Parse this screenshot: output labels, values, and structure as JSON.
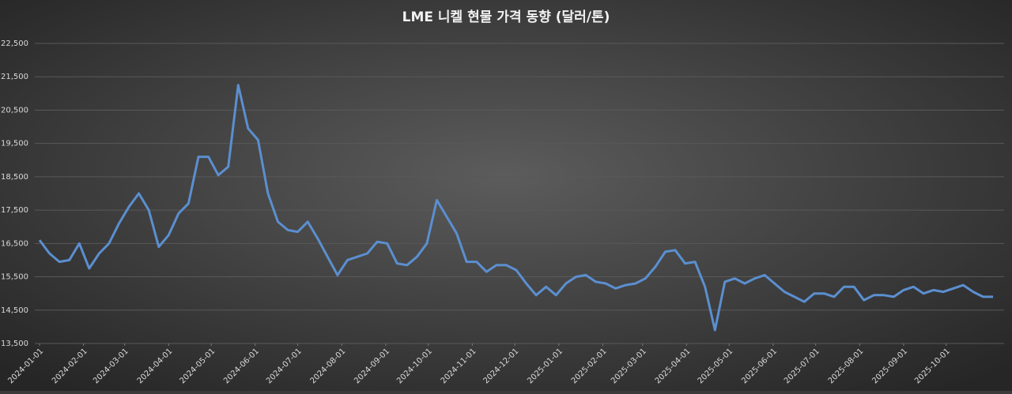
{
  "chart_data": {
    "type": "line",
    "title": "LME 니켈 현물 가격 동향 (달러/톤)",
    "x": [
      "2024-01-01",
      "2024-01-08",
      "2024-01-15",
      "2024-01-22",
      "2024-01-29",
      "2024-02-05",
      "2024-02-12",
      "2024-02-19",
      "2024-02-26",
      "2024-03-04",
      "2024-03-11",
      "2024-03-18",
      "2024-03-25",
      "2024-04-01",
      "2024-04-08",
      "2024-04-15",
      "2024-04-22",
      "2024-04-29",
      "2024-05-06",
      "2024-05-13",
      "2024-05-20",
      "2024-05-27",
      "2024-06-03",
      "2024-06-10",
      "2024-06-17",
      "2024-06-24",
      "2024-07-01",
      "2024-07-08",
      "2024-07-15",
      "2024-07-22",
      "2024-07-29",
      "2024-08-05",
      "2024-08-12",
      "2024-08-19",
      "2024-08-26",
      "2024-09-02",
      "2024-09-09",
      "2024-09-16",
      "2024-09-23",
      "2024-09-30",
      "2024-10-07",
      "2024-10-14",
      "2024-10-21",
      "2024-10-28",
      "2024-11-04",
      "2024-11-11",
      "2024-11-18",
      "2024-11-25",
      "2024-12-02",
      "2024-12-09",
      "2024-12-16",
      "2024-12-23",
      "2024-12-30",
      "2025-01-06",
      "2025-01-13",
      "2025-01-20",
      "2025-01-27",
      "2025-02-03",
      "2025-02-10",
      "2025-02-17",
      "2025-02-24",
      "2025-03-03",
      "2025-03-10",
      "2025-03-17",
      "2025-03-24",
      "2025-03-31",
      "2025-04-07",
      "2025-04-14",
      "2025-04-21",
      "2025-04-28",
      "2025-05-05",
      "2025-05-12",
      "2025-05-19",
      "2025-05-26",
      "2025-06-02",
      "2025-06-09",
      "2025-06-16",
      "2025-06-23",
      "2025-06-30",
      "2025-07-07",
      "2025-07-14",
      "2025-07-21",
      "2025-07-28",
      "2025-08-04",
      "2025-08-11",
      "2025-08-18",
      "2025-08-25",
      "2025-09-01",
      "2025-09-08",
      "2025-09-15",
      "2025-09-22",
      "2025-09-29",
      "2025-10-06",
      "2025-10-13",
      "2025-10-20",
      "2025-10-27",
      "2025-11-03"
    ],
    "values": [
      16600,
      16200,
      15950,
      16000,
      16500,
      15750,
      16200,
      16500,
      17100,
      17600,
      18000,
      17500,
      16400,
      16750,
      17400,
      17700,
      19100,
      19100,
      18550,
      18800,
      21250,
      19950,
      19600,
      18000,
      17150,
      16900,
      16850,
      17150,
      16650,
      16100,
      15550,
      16000,
      16100,
      16200,
      16550,
      16500,
      15900,
      15850,
      16100,
      16500,
      17800,
      17300,
      16800,
      15950,
      15950,
      15650,
      15850,
      15850,
      15700,
      15300,
      14950,
      15200,
      14950,
      15300,
      15500,
      15550,
      15350,
      15300,
      15150,
      15250,
      15300,
      15450,
      15800,
      16250,
      16300,
      15900,
      15950,
      15200,
      13900,
      15350,
      15450,
      15300,
      15450,
      15550,
      15300,
      15050,
      14900,
      14750,
      15000,
      15000,
      14900,
      15200,
      15200,
      14800,
      14950,
      14950,
      14900,
      15100,
      15200,
      15000,
      15100,
      15050,
      15150,
      15250,
      15050,
      14900,
      14900
    ],
    "color": "#5b8fd0",
    "xlim": [
      "2024-01-01",
      "2025-11-03"
    ],
    "xticks": [
      "2024-01-01",
      "2024-02-01",
      "2024-03-01",
      "2024-04-01",
      "2024-05-01",
      "2024-06-01",
      "2024-07-01",
      "2024-08-01",
      "2024-09-01",
      "2024-10-01",
      "2024-11-01",
      "2024-12-01",
      "2025-01-01",
      "2025-02-01",
      "2025-03-01",
      "2025-04-01",
      "2025-05-01",
      "2025-06-01",
      "2025-07-01",
      "2025-08-01",
      "2025-09-01",
      "2025-10-01"
    ],
    "ylim": [
      13500,
      22500
    ],
    "yticks": [
      {
        "value": 13500,
        "label": "13,500"
      },
      {
        "value": 14500,
        "label": "14,500"
      },
      {
        "value": 15500,
        "label": "15,500"
      },
      {
        "value": 16500,
        "label": "16,500"
      },
      {
        "value": 17500,
        "label": "17,500"
      },
      {
        "value": 18500,
        "label": "18,500"
      },
      {
        "value": 19500,
        "label": "19,500"
      },
      {
        "value": 20500,
        "label": "20,500"
      },
      {
        "value": 21500,
        "label": "21,500"
      },
      {
        "value": 22500,
        "label": "22,500"
      }
    ],
    "grid": true
  }
}
